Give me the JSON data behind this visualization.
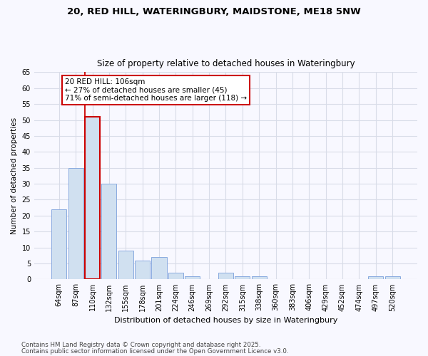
{
  "title1": "20, RED HILL, WATERINGBURY, MAIDSTONE, ME18 5NW",
  "title2": "Size of property relative to detached houses in Wateringbury",
  "xlabel": "Distribution of detached houses by size in Wateringbury",
  "ylabel": "Number of detached properties",
  "categories": [
    "64sqm",
    "87sqm",
    "110sqm",
    "132sqm",
    "155sqm",
    "178sqm",
    "201sqm",
    "224sqm",
    "246sqm",
    "269sqm",
    "292sqm",
    "315sqm",
    "338sqm",
    "360sqm",
    "383sqm",
    "406sqm",
    "429sqm",
    "452sqm",
    "474sqm",
    "497sqm",
    "520sqm"
  ],
  "values": [
    22,
    35,
    51,
    30,
    9,
    6,
    7,
    2,
    1,
    0,
    2,
    1,
    1,
    0,
    0,
    0,
    0,
    0,
    0,
    1,
    1
  ],
  "bar_color": "#d0e0f0",
  "bar_edge_color": "#8aabe0",
  "highlight_bar_index": 2,
  "highlight_bar_edge_color": "#cc0000",
  "highlight_line_color": "#cc0000",
  "ylim": [
    0,
    65
  ],
  "yticks": [
    0,
    5,
    10,
    15,
    20,
    25,
    30,
    35,
    40,
    45,
    50,
    55,
    60,
    65
  ],
  "annotation_text": "20 RED HILL: 106sqm\n← 27% of detached houses are smaller (45)\n71% of semi-detached houses are larger (118) →",
  "annotation_box_facecolor": "#ffffff",
  "annotation_box_edgecolor": "#cc0000",
  "footnote1": "Contains HM Land Registry data © Crown copyright and database right 2025.",
  "footnote2": "Contains public sector information licensed under the Open Government Licence v3.0.",
  "bg_color": "#f8f8ff",
  "plot_bg_color": "#f8f8ff",
  "grid_color": "#d8dce8"
}
